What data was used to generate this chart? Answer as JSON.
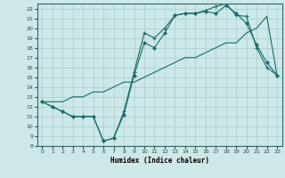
{
  "xlabel": "Humidex (Indice chaleur)",
  "bg_color": "#cce8e8",
  "grid_color": "#aacccc",
  "line_color": "#1a6b6b",
  "xlim": [
    -0.5,
    23.5
  ],
  "ylim": [
    8,
    22.5
  ],
  "xticks": [
    0,
    1,
    2,
    3,
    4,
    5,
    6,
    7,
    8,
    9,
    10,
    11,
    12,
    13,
    14,
    15,
    16,
    17,
    18,
    19,
    20,
    21,
    22,
    23
  ],
  "yticks": [
    8,
    9,
    10,
    11,
    12,
    13,
    14,
    15,
    16,
    17,
    18,
    19,
    20,
    21,
    22
  ],
  "line1_x": [
    0,
    1,
    2,
    3,
    4,
    5,
    6,
    7,
    8,
    9,
    10,
    11,
    12,
    13,
    14,
    15,
    16,
    17,
    18,
    19,
    20,
    21,
    22,
    23
  ],
  "line1_y": [
    12.5,
    12.0,
    11.5,
    11.0,
    11.0,
    11.0,
    8.5,
    8.8,
    11.2,
    15.2,
    18.5,
    18.0,
    19.5,
    21.3,
    21.5,
    21.5,
    21.7,
    21.5,
    22.3,
    21.5,
    20.5,
    18.3,
    16.5,
    15.2
  ],
  "line2_x": [
    0,
    1,
    2,
    3,
    4,
    5,
    6,
    7,
    8,
    9,
    10,
    11,
    12,
    13,
    14,
    15,
    16,
    17,
    18,
    19,
    20,
    21,
    22,
    23
  ],
  "line2_y": [
    12.5,
    12.0,
    11.5,
    11.0,
    11.0,
    11.0,
    8.5,
    8.8,
    11.5,
    15.5,
    19.5,
    19.0,
    20.0,
    21.3,
    21.5,
    21.5,
    21.8,
    22.2,
    22.5,
    21.3,
    21.2,
    18.0,
    16.0,
    15.2
  ],
  "line3_x": [
    0,
    1,
    2,
    3,
    4,
    5,
    6,
    7,
    8,
    9,
    10,
    11,
    12,
    13,
    14,
    15,
    16,
    17,
    18,
    19,
    20,
    21,
    22,
    23
  ],
  "line3_y": [
    12.5,
    12.5,
    12.5,
    13.0,
    13.0,
    13.5,
    13.5,
    14.0,
    14.5,
    14.5,
    15.0,
    15.5,
    16.0,
    16.5,
    17.0,
    17.0,
    17.5,
    18.0,
    18.5,
    18.5,
    19.5,
    20.0,
    21.2,
    15.2
  ]
}
